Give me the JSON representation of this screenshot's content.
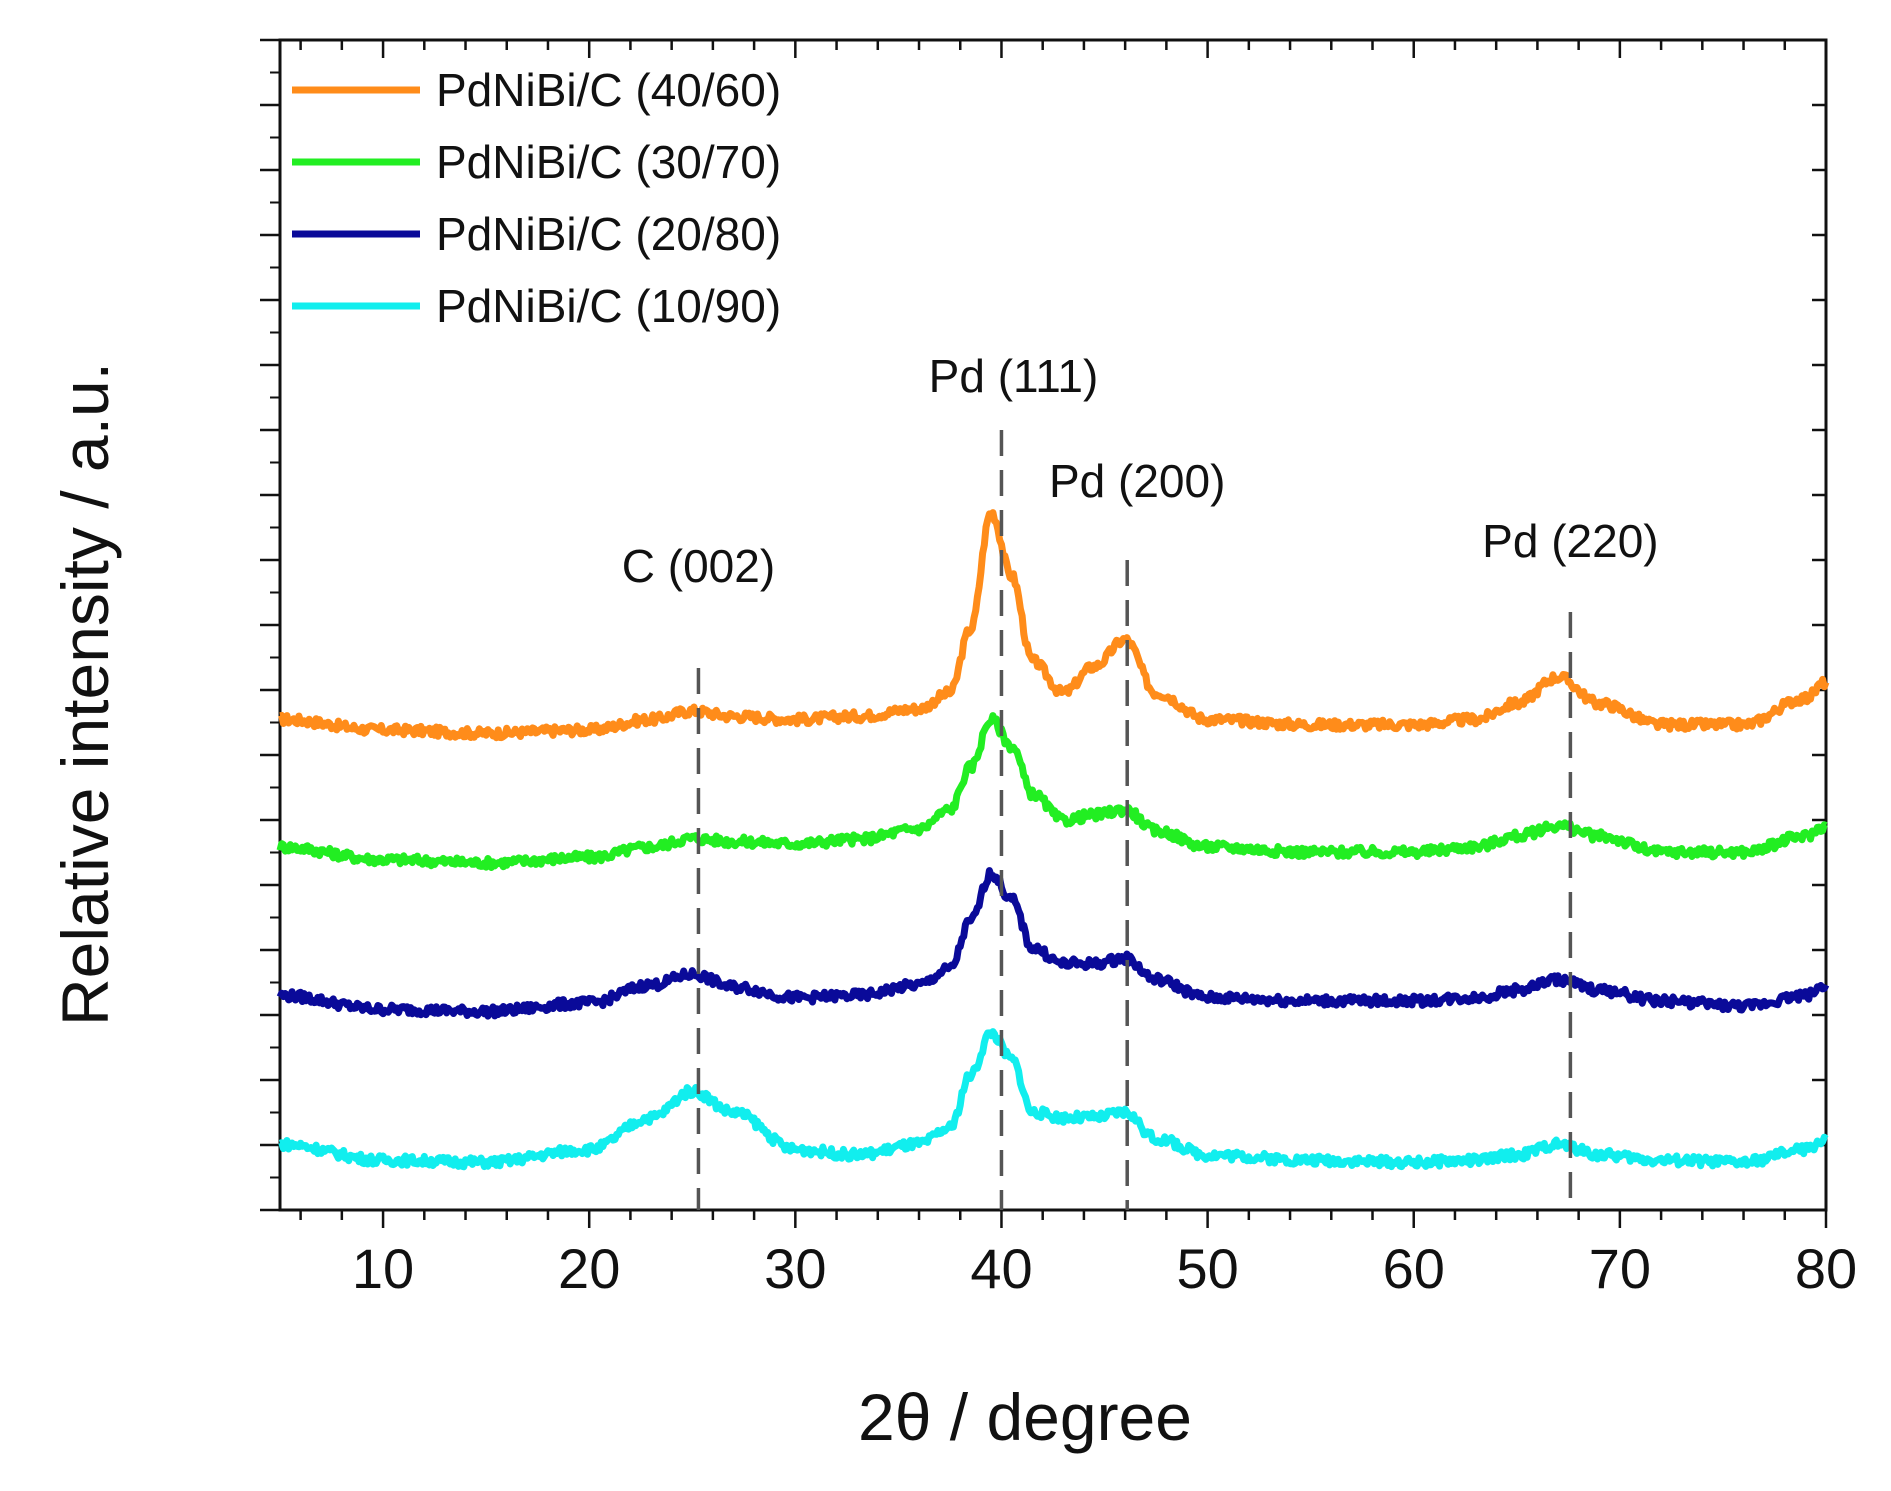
{
  "chart_data": {
    "type": "line",
    "title": "",
    "xlabel": "2θ / degree",
    "ylabel": "Relative intensity / a.u.",
    "xlim": [
      5,
      80
    ],
    "ylim": [
      0,
      100
    ],
    "xticks": [
      10,
      20,
      30,
      40,
      50,
      60,
      70,
      80
    ],
    "legend_position": "top-left",
    "grid": false,
    "series": [
      {
        "name": "PdNiBi/C (40/60)",
        "color": "#ff8c1a",
        "x": [
          5,
          10,
          15,
          20,
          23,
          25,
          27,
          30,
          33,
          36,
          37.5,
          38.5,
          39.5,
          40.5,
          41.5,
          43,
          44.5,
          46,
          47.5,
          50,
          55,
          60,
          63,
          65,
          67,
          69,
          72,
          76,
          79,
          80
        ],
        "y": [
          44.5,
          43.5,
          43.2,
          43.5,
          44.5,
          45.3,
          44.8,
          44.5,
          44.8,
          45.5,
          47,
          53,
          64,
          58,
          50,
          47,
          49.5,
          52,
          47,
          44.5,
          44,
          44,
          44.5,
          46,
          48.5,
          46,
          44,
          44,
          46.5,
          48
        ]
      },
      {
        "name": "PdNiBi/C (30/70)",
        "color": "#22ee22",
        "x": [
          5,
          10,
          15,
          20,
          23,
          25,
          27,
          30,
          33,
          36,
          37.5,
          38.5,
          39.5,
          40.5,
          41.5,
          43,
          44.5,
          46,
          47.5,
          50,
          55,
          60,
          63,
          65,
          67,
          69,
          72,
          76,
          79,
          80
        ],
        "y": [
          32.5,
          31.3,
          31.0,
          31.5,
          32.5,
          33.3,
          33.0,
          32.8,
          33.2,
          34.2,
          36,
          40,
          44.5,
          42,
          37.5,
          35,
          35.5,
          36,
          34,
          32.5,
          32,
          32,
          32.5,
          33.5,
          34.5,
          33.5,
          32,
          32,
          33.5,
          34.5
        ]
      },
      {
        "name": "PdNiBi/C (20/80)",
        "color": "#0a0a99",
        "x": [
          5,
          10,
          15,
          20,
          23,
          25,
          27,
          30,
          33,
          36,
          37.5,
          38.5,
          39.5,
          40.5,
          41.5,
          43,
          44.5,
          46,
          47.5,
          50,
          55,
          60,
          63,
          65,
          67,
          69,
          72,
          76,
          79,
          80
        ],
        "y": [
          18.5,
          17.2,
          17.0,
          17.8,
          19.5,
          20.5,
          19.3,
          18.3,
          18.5,
          19.5,
          21,
          25.5,
          30,
          27.5,
          23,
          21.5,
          21.5,
          22,
          20,
          18.3,
          18,
          18,
          18.3,
          19,
          20,
          19,
          18,
          17.5,
          18.5,
          19.5
        ]
      },
      {
        "name": "PdNiBi/C (10/90)",
        "color": "#11eeee",
        "x": [
          5,
          10,
          15,
          20,
          23,
          25,
          27,
          30,
          33,
          36,
          37.5,
          38.5,
          39.5,
          40.5,
          41.5,
          43,
          44.5,
          46,
          47.5,
          50,
          55,
          60,
          63,
          65,
          67,
          69,
          72,
          76,
          79,
          80
        ],
        "y": [
          4.5,
          3.0,
          2.8,
          4.0,
          7,
          9.5,
          7.5,
          4.0,
          3.5,
          4.5,
          6,
          11,
          15,
          12.5,
          7.5,
          7,
          7,
          7.5,
          5,
          3.5,
          3,
          2.8,
          3,
          3.5,
          4.5,
          3.5,
          3,
          2.8,
          4,
          5
        ]
      }
    ],
    "annotations": [
      {
        "text": "C (002)",
        "x": 25.3
      },
      {
        "text": "Pd (111)",
        "x": 40.0
      },
      {
        "text": "Pd (200)",
        "x": 46.1
      },
      {
        "text": "Pd (220)",
        "x": 67.6
      }
    ]
  }
}
